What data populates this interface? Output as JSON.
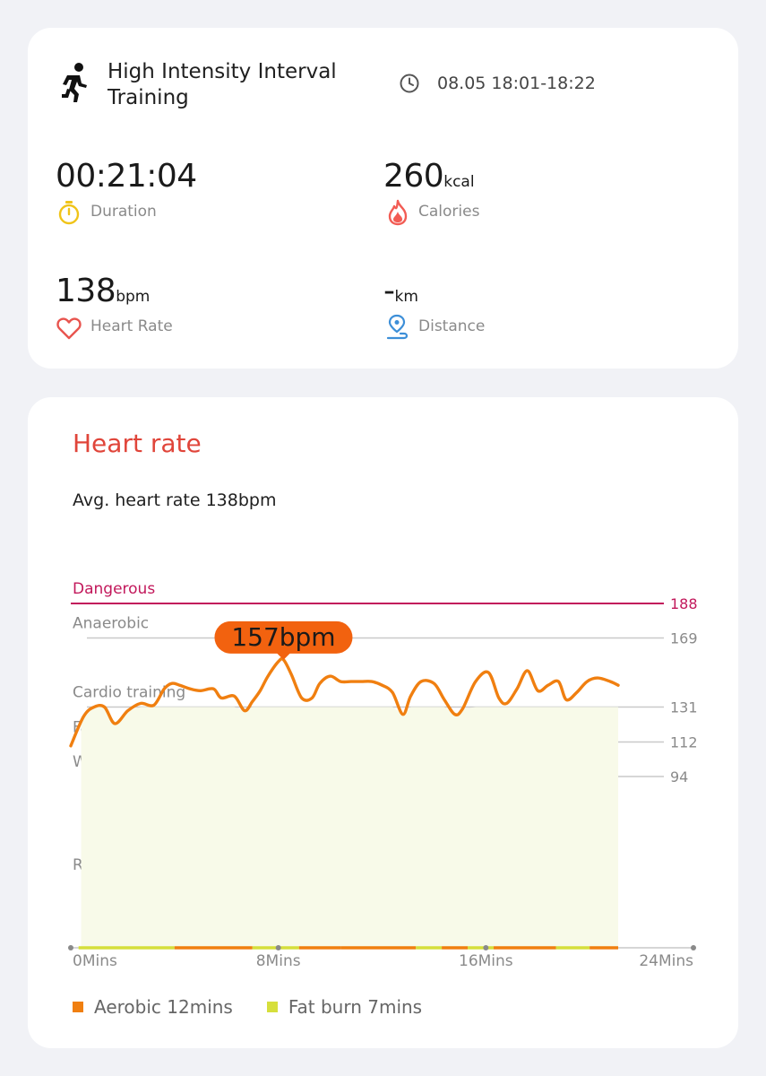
{
  "workout": {
    "title": "High Intensity Interval Training",
    "time_range": "08.05 18:01-18:22",
    "icon": "running-person-icon"
  },
  "stats": {
    "duration": {
      "value": "00:21:04",
      "label": "Duration",
      "icon": "stopwatch-icon",
      "color": "#f0c419"
    },
    "calories": {
      "value": "260",
      "unit": "kcal",
      "label": "Calories",
      "icon": "flame-icon",
      "color": "#f25c54"
    },
    "heart_rate": {
      "value": "138",
      "unit": "bpm",
      "label": "Heart Rate",
      "icon": "heart-icon",
      "color": "#e8544e"
    },
    "distance": {
      "value": "-",
      "unit": "km",
      "label": "Distance",
      "icon": "route-pin-icon",
      "color": "#3d8fd8"
    }
  },
  "heart_rate_section": {
    "title": "Heart rate",
    "title_color": "#e0453a",
    "average_text": "Avg. heart rate 138bpm",
    "peak_label": "157bpm"
  },
  "legend": [
    {
      "label": "Aerobic 12mins",
      "color": "#f07f10"
    },
    {
      "label": "Fat burn 7mins",
      "color": "#d6df3c"
    }
  ],
  "chart_data": {
    "type": "line",
    "title": "Heart rate",
    "xlabel": "",
    "ylabel": "",
    "x_ticks": [
      "0Mins",
      "8Mins",
      "16Mins",
      "24Mins"
    ],
    "xlim": [
      0,
      24
    ],
    "zones": [
      {
        "name": "Dangerous",
        "threshold": 188,
        "color": "#c2185b"
      },
      {
        "name": "Anaerobic",
        "threshold": 169
      },
      {
        "name": "Cardio training",
        "threshold": 131
      },
      {
        "name": "Fat burning",
        "threshold": 112
      },
      {
        "name": "Warm up",
        "threshold": 94
      },
      {
        "name": "Resting"
      }
    ],
    "peak": {
      "x": 8.2,
      "y": 157,
      "label": "157bpm"
    },
    "series": [
      {
        "color": "#f07f10",
        "x": [
          0,
          0.5,
          0.9,
          1.3,
          1.7,
          2.2,
          2.7,
          3.2,
          3.6,
          3.9,
          4.2,
          4.6,
          5.0,
          5.5,
          5.8,
          6.3,
          6.7,
          7.0,
          7.3,
          7.6,
          8.0,
          8.2,
          8.5,
          8.9,
          9.3,
          9.6,
          10.0,
          10.4,
          10.8,
          11.2,
          11.6,
          12.0,
          12.4,
          12.8,
          13.1,
          13.5,
          14.0,
          14.4,
          14.8,
          15.1,
          15.6,
          16.1,
          16.5,
          16.8,
          17.2,
          17.6,
          18.0,
          18.4,
          18.8,
          19.1,
          19.5,
          19.9,
          20.3,
          20.8,
          21.1
        ],
        "y": [
          110,
          126,
          131,
          131,
          122,
          129,
          133,
          132,
          141,
          144,
          143,
          141,
          140,
          141,
          136,
          137,
          129,
          134,
          140,
          148,
          156,
          157,
          149,
          136,
          136,
          144,
          148,
          145,
          145,
          145,
          145,
          143,
          139,
          127,
          137,
          145,
          144,
          135,
          127,
          130,
          145,
          150,
          136,
          133,
          141,
          151,
          140,
          143,
          145,
          135,
          139,
          145,
          147,
          145,
          143
        ]
      }
    ]
  }
}
